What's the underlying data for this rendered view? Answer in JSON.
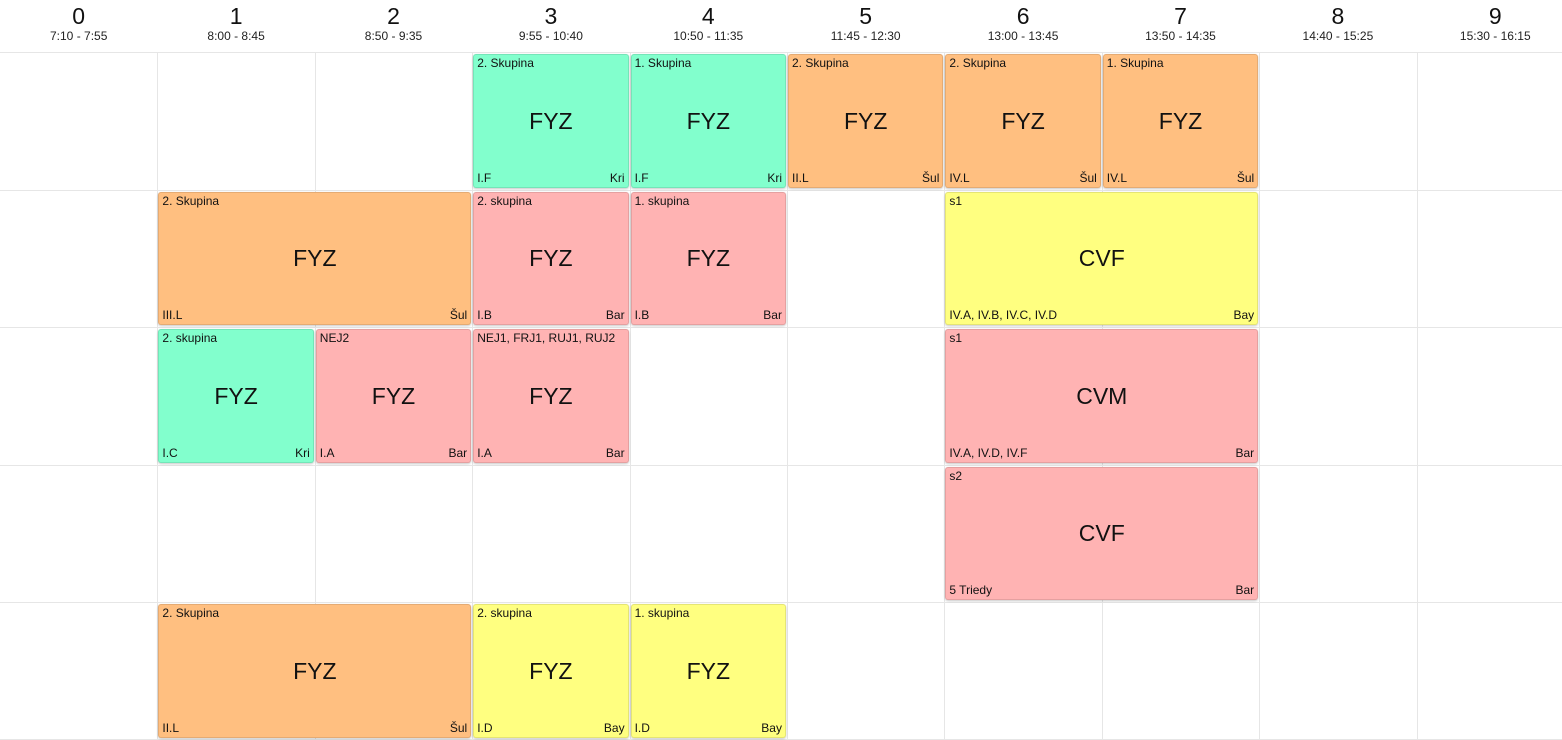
{
  "periods": [
    {
      "num": "0",
      "time": "7:10 - 7:55"
    },
    {
      "num": "1",
      "time": "8:00 - 8:45"
    },
    {
      "num": "2",
      "time": "8:50 - 9:35"
    },
    {
      "num": "3",
      "time": "9:55 - 10:40"
    },
    {
      "num": "4",
      "time": "10:50 - 11:35"
    },
    {
      "num": "5",
      "time": "11:45 - 12:30"
    },
    {
      "num": "6",
      "time": "13:00 - 13:45"
    },
    {
      "num": "7",
      "time": "13:50 - 14:35"
    },
    {
      "num": "8",
      "time": "14:40 - 15:25"
    },
    {
      "num": "9",
      "time": "15:30 - 16:15"
    }
  ],
  "colors": {
    "green": "#82ffcd",
    "orange": "#ffbf80",
    "pink": "#ffb3b3",
    "yellow": "#ffff80"
  },
  "cards": [
    {
      "row": 0,
      "start": 3,
      "span": 1,
      "color": "green",
      "group": "2. Skupina",
      "subject": "FYZ",
      "class": "I.F",
      "teacher": "Kri"
    },
    {
      "row": 0,
      "start": 4,
      "span": 1,
      "color": "green",
      "group": "1. Skupina",
      "subject": "FYZ",
      "class": "I.F",
      "teacher": "Kri"
    },
    {
      "row": 0,
      "start": 5,
      "span": 1,
      "color": "orange",
      "group": "2. Skupina",
      "subject": "FYZ",
      "class": "II.L",
      "teacher": "Šul"
    },
    {
      "row": 0,
      "start": 6,
      "span": 1,
      "color": "orange",
      "group": "2. Skupina",
      "subject": "FYZ",
      "class": "IV.L",
      "teacher": "Šul"
    },
    {
      "row": 0,
      "start": 7,
      "span": 1,
      "color": "orange",
      "group": "1. Skupina",
      "subject": "FYZ",
      "class": "IV.L",
      "teacher": "Šul"
    },
    {
      "row": 1,
      "start": 1,
      "span": 2,
      "color": "orange",
      "group": "2. Skupina",
      "subject": "FYZ",
      "class": "III.L",
      "teacher": "Šul"
    },
    {
      "row": 1,
      "start": 3,
      "span": 1,
      "color": "pink",
      "group": "2. skupina",
      "subject": "FYZ",
      "class": "I.B",
      "teacher": "Bar"
    },
    {
      "row": 1,
      "start": 4,
      "span": 1,
      "color": "pink",
      "group": "1. skupina",
      "subject": "FYZ",
      "class": "I.B",
      "teacher": "Bar"
    },
    {
      "row": 1,
      "start": 6,
      "span": 2,
      "color": "yellow",
      "group": "s1",
      "subject": "CVF",
      "class": "IV.A, IV.B, IV.C, IV.D",
      "teacher": "Bay"
    },
    {
      "row": 2,
      "start": 1,
      "span": 1,
      "color": "green",
      "group": "2. skupina",
      "subject": "FYZ",
      "class": "I.C",
      "teacher": "Kri"
    },
    {
      "row": 2,
      "start": 2,
      "span": 1,
      "color": "pink",
      "group": "NEJ2",
      "subject": "FYZ",
      "class": "I.A",
      "teacher": "Bar"
    },
    {
      "row": 2,
      "start": 3,
      "span": 1,
      "color": "pink",
      "group": "NEJ1, FRJ1, RUJ1, RUJ2",
      "subject": "FYZ",
      "class": "I.A",
      "teacher": "Bar"
    },
    {
      "row": 2,
      "start": 6,
      "span": 2,
      "color": "pink",
      "group": "s1",
      "subject": "CVM",
      "class": "IV.A, IV.D, IV.F",
      "teacher": "Bar"
    },
    {
      "row": 3,
      "start": 6,
      "span": 2,
      "color": "pink",
      "group": "s2",
      "subject": "CVF",
      "class": "5 Triedy",
      "teacher": "Bar"
    },
    {
      "row": 4,
      "start": 1,
      "span": 2,
      "color": "orange",
      "group": "2. Skupina",
      "subject": "FYZ",
      "class": "II.L",
      "teacher": "Šul"
    },
    {
      "row": 4,
      "start": 3,
      "span": 1,
      "color": "yellow",
      "group": "2. skupina",
      "subject": "FYZ",
      "class": "I.D",
      "teacher": "Bay"
    },
    {
      "row": 4,
      "start": 4,
      "span": 1,
      "color": "yellow",
      "group": "1. skupina",
      "subject": "FYZ",
      "class": "I.D",
      "teacher": "Bay"
    }
  ]
}
